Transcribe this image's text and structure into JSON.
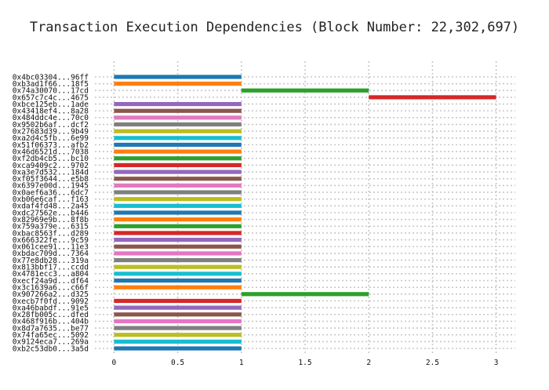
{
  "chart_data": {
    "type": "bar",
    "orientation": "horizontal-timeline",
    "title": "Transaction Execution Dependencies (Block Number: 22,302,697)",
    "xlabel": "",
    "ylabel": "",
    "xlim": [
      -0.15,
      3.15
    ],
    "xticks": [
      0,
      0.5,
      1,
      1.5,
      2,
      2.5,
      3
    ],
    "xtick_labels": [
      "0",
      "0.5",
      "1",
      "1.5",
      "2",
      "2.5",
      "3"
    ],
    "grid": true,
    "legend": "none",
    "palette": [
      "#1f77b4",
      "#ff7f0e",
      "#2ca02c",
      "#d62728",
      "#9467bd",
      "#8c564b",
      "#e377c2",
      "#7f7f7f",
      "#bcbd22",
      "#17becf"
    ],
    "categories": [
      "0x4bc03304...96ff",
      "0xb3ad1f66...18f5",
      "0x74a30070...17cd",
      "0x657c7c4c...4675",
      "0xbce125eb...1ade",
      "0x43418ef4...8a28",
      "0x484ddc4e...70c0",
      "0x9502b6af...dcf2",
      "0x27683d39...9b49",
      "0xa2d4c5fb...6e99",
      "0x51f06373...afb2",
      "0x46d6521d...7038",
      "0xf2db4cb5...bc10",
      "0xca9409c2...9702",
      "0xa3e7d532...184d",
      "0xf05f3644...e5b8",
      "0x6397e00d...1945",
      "0x0aef6a36...6dc7",
      "0xb06e6caf...f163",
      "0xdaf4fd48...2a45",
      "0xdc27562e...b446",
      "0x82969e9b...8f8b",
      "0x759a379e...6315",
      "0xbac8563f...d289",
      "0x666322fe...9c59",
      "0x061cee91...11e3",
      "0xbdac709d...7364",
      "0x77e8db28...319a",
      "0x813bbf17...ccdd",
      "0x4781ecc3...a804",
      "0xecf24a9d...df64",
      "0x3c1639a6...c66f",
      "0x907266a2...d325",
      "0xecb7f0fd...9092",
      "0xa46babdf...91e5",
      "0x28fb005c...dfed",
      "0x468f916b...404b",
      "0x8d7a7635...be77",
      "0x74fa65ec...5092",
      "0x9124eca7...269a",
      "0xb2c53db0...3a5d"
    ],
    "start": [
      0,
      0,
      1,
      2,
      0,
      0,
      0,
      0,
      0,
      0,
      0,
      0,
      0,
      0,
      0,
      0,
      0,
      0,
      0,
      0,
      0,
      0,
      0,
      0,
      0,
      0,
      0,
      0,
      0,
      0,
      0,
      0,
      1,
      0,
      0,
      0,
      0,
      0,
      0,
      0,
      0
    ],
    "end": [
      1,
      1,
      2,
      3,
      1,
      1,
      1,
      1,
      1,
      1,
      1,
      1,
      1,
      1,
      1,
      1,
      1,
      1,
      1,
      1,
      1,
      1,
      1,
      1,
      1,
      1,
      1,
      1,
      1,
      1,
      1,
      1,
      2,
      1,
      1,
      1,
      1,
      1,
      1,
      1,
      1
    ]
  }
}
